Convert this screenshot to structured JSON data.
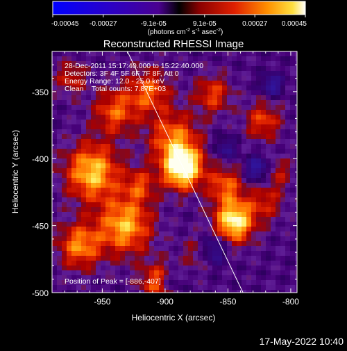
{
  "colorbar": {
    "ticks": [
      "-0.00045",
      "-0.00027",
      "-9.1e-05",
      "9.1e-05",
      "0.00027",
      "0.00045"
    ],
    "tick_values": [
      -0.00045,
      -0.00027,
      -9.1e-05,
      9.1e-05,
      0.00027,
      0.00045
    ],
    "range": [
      -0.00045,
      0.00045
    ],
    "units_prefix": "(photons cm",
    "units_exp1": "-2",
    "units_mid": " s",
    "units_exp2": "-1",
    "units_end": " asec",
    "units_exp3": "-2",
    "units_close": ")"
  },
  "chart_data": {
    "type": "heatmap",
    "title": "Reconstructed RHESSI Image",
    "xlabel": "Heliocentric X (arcsec)",
    "ylabel": "Heliocentric Y (arcsec)",
    "xlim": [
      -990,
      -795
    ],
    "ylim": [
      -500,
      -320
    ],
    "xticks": [
      -950,
      -900,
      -850,
      -800
    ],
    "xtick_labels": [
      "-950",
      "-900",
      "-850",
      "-800"
    ],
    "yticks": [
      -350,
      -400,
      -450,
      -500
    ],
    "ytick_labels": [
      "-350",
      "-400",
      "-450",
      "-500"
    ],
    "colormap": "red-temperature (blue/purple negative, red/yellow/white positive)",
    "limb_line": [
      [
        -930,
        -320
      ],
      [
        -838,
        -500
      ]
    ],
    "sources": [
      {
        "x": -886,
        "y": -407,
        "sigma": 11,
        "peak": 1.0
      },
      {
        "x": -893,
        "y": -385,
        "sigma": 14,
        "peak": 0.55
      },
      {
        "x": -845,
        "y": -447,
        "sigma": 11,
        "peak": 0.9
      },
      {
        "x": -852,
        "y": -420,
        "sigma": 10,
        "peak": 0.5
      },
      {
        "x": -958,
        "y": -410,
        "sigma": 15,
        "peak": 0.75
      },
      {
        "x": -932,
        "y": -450,
        "sigma": 15,
        "peak": 0.7
      },
      {
        "x": -968,
        "y": -465,
        "sigma": 12,
        "peak": 0.6
      },
      {
        "x": -940,
        "y": -365,
        "sigma": 12,
        "peak": 0.5
      },
      {
        "x": -913,
        "y": -350,
        "sigma": 12,
        "peak": 0.5
      },
      {
        "x": -862,
        "y": -352,
        "sigma": 10,
        "peak": 0.45
      },
      {
        "x": -822,
        "y": -372,
        "sigma": 10,
        "peak": 0.45
      },
      {
        "x": -906,
        "y": -492,
        "sigma": 10,
        "peak": 0.5
      },
      {
        "x": -872,
        "y": -470,
        "sigma": 9,
        "peak": 0.35
      },
      {
        "x": -820,
        "y": -432,
        "sigma": 10,
        "peak": 0.35
      },
      {
        "x": -975,
        "y": -340,
        "sigma": 9,
        "peak": 0.35
      },
      {
        "x": -920,
        "y": -420,
        "sigma": 9,
        "peak": 0.4
      },
      {
        "x": -810,
        "y": -410,
        "sigma": 8,
        "peak": 0.3
      }
    ],
    "negative_sources": [
      {
        "x": -863,
        "y": -468,
        "sigma": 8,
        "peak": -0.55
      },
      {
        "x": -826,
        "y": -408,
        "sigma": 7,
        "peak": -0.5
      },
      {
        "x": -815,
        "y": -345,
        "sigma": 6,
        "peak": -0.45
      },
      {
        "x": -852,
        "y": -392,
        "sigma": 6,
        "peak": -0.35
      },
      {
        "x": -895,
        "y": -492,
        "sigma": 6,
        "peak": -0.3
      }
    ]
  },
  "info": {
    "line1": "28-Dec-2011 15:17:40.000 to 15:22:40.000",
    "line2": "Detectors: 3F 4F 5F 6F 7F 8F, Att 0",
    "line3": "Energy Range: 12.0 - 25.0 keV",
    "line4": "Clean    Total counts: 7.87E+03",
    "peak_label": "Position of Peak = [-886,-407]"
  },
  "footer": {
    "date": "17-May-2022 10:40"
  }
}
